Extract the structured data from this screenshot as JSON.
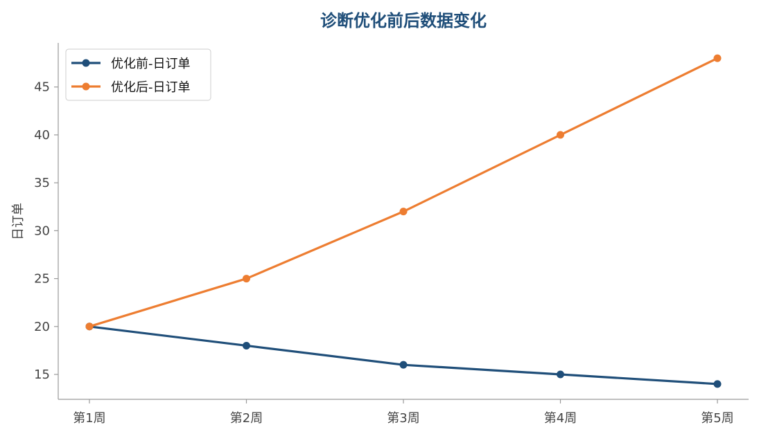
{
  "chart_data": {
    "type": "line",
    "title": "诊断优化前后数据变化",
    "xlabel": "",
    "ylabel": "日订单",
    "categories": [
      "第1周",
      "第2周",
      "第3周",
      "第4周",
      "第5周"
    ],
    "series": [
      {
        "name": "优化前-日订单",
        "color": "#1f4e79",
        "values": [
          20,
          18,
          16,
          15,
          14
        ]
      },
      {
        "name": "优化后-日订单",
        "color": "#ed7d31",
        "values": [
          20,
          25,
          32,
          40,
          48
        ]
      }
    ],
    "yticks": [
      15,
      20,
      25,
      30,
      35,
      40,
      45
    ],
    "ylim": [
      12.4,
      49.6
    ],
    "grid": false,
    "legend": "top-left"
  }
}
